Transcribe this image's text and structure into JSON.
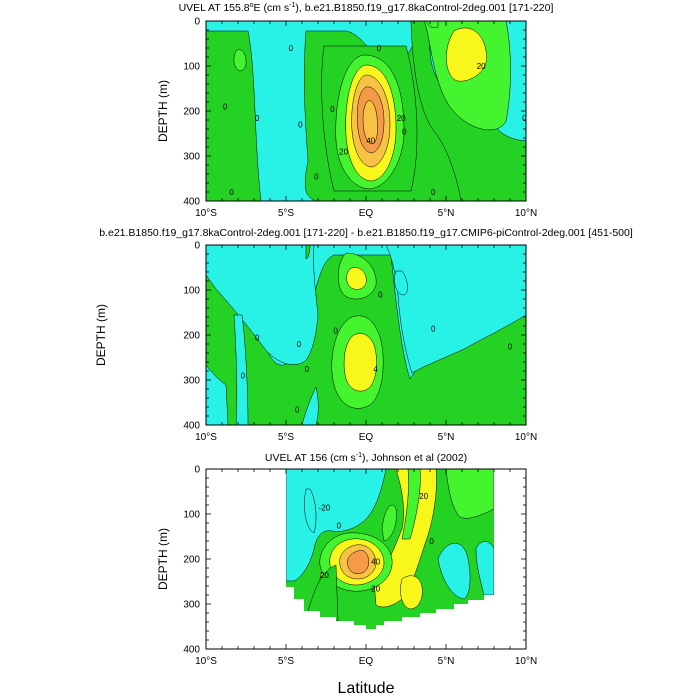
{
  "figure": {
    "xlabel": "Latitude",
    "colors": {
      "cyan": "#28f2e6",
      "green": "#24d224",
      "lime": "#44f42e",
      "yellow": "#f7f71c",
      "lightorange": "#f8c244",
      "orange": "#f59a46",
      "background": "#ffffff"
    }
  },
  "chart_data": [
    {
      "type": "contour",
      "title_parts": [
        "UVEL AT 155.8",
        "o",
        "E (cm s",
        "-1",
        "), b.e21.B1850.f19_g17.8kaControl-2deg.001 [171-220]"
      ],
      "xlabel": "",
      "ylabel": "DEPTH (m)",
      "xlim": [
        -10,
        10
      ],
      "ylim": [
        400,
        0
      ],
      "xticks": [
        -10,
        -5,
        0,
        5,
        10
      ],
      "xtick_labels": [
        "10°S",
        "5°S",
        "EQ",
        "5°N",
        "10°N"
      ],
      "yticks": [
        0,
        100,
        200,
        300,
        400
      ],
      "ytick_labels": [
        "0",
        "100",
        "200",
        "300",
        "400"
      ],
      "contour_labels": [
        {
          "text": "0",
          "x": -8.4,
          "y": 380
        },
        {
          "text": "0",
          "x": -8.8,
          "y": 190
        },
        {
          "text": "0",
          "x": -6.8,
          "y": 215
        },
        {
          "text": "0",
          "x": -4.7,
          "y": 60
        },
        {
          "text": "0",
          "x": -4.1,
          "y": 230
        },
        {
          "text": "0",
          "x": -3.1,
          "y": 345
        },
        {
          "text": "0",
          "x": -2.1,
          "y": 195
        },
        {
          "text": "0",
          "x": 0.8,
          "y": 60
        },
        {
          "text": "0",
          "x": 4.2,
          "y": 380
        },
        {
          "text": "0",
          "x": 9.9,
          "y": 215
        },
        {
          "text": "20",
          "x": 2.2,
          "y": 215
        },
        {
          "text": "20",
          "x": 7.2,
          "y": 100
        },
        {
          "text": "40",
          "x": 0.3,
          "y": 265
        },
        {
          "text": "20",
          "x": -1.4,
          "y": 290
        },
        {
          "text": "0",
          "x": 2.4,
          "y": 245
        }
      ]
    },
    {
      "type": "contour",
      "title_parts": [
        "b.e21.B1850.f19_g17.8kaControl-2deg.001 [171-220] - b.e21.B1850.f19_g17.CMIP6-piControl-2deg.001 [451-500]"
      ],
      "xlabel": "",
      "ylabel": "DEPTH (m)",
      "xlim": [
        -10,
        10
      ],
      "ylim": [
        400,
        0
      ],
      "xticks": [
        -10,
        -5,
        0,
        5,
        10
      ],
      "xtick_labels": [
        "10°S",
        "5°S",
        "EQ",
        "5°N",
        "10°N"
      ],
      "yticks": [
        0,
        100,
        200,
        300,
        400
      ],
      "ytick_labels": [
        "0",
        "100",
        "200",
        "300",
        "400"
      ],
      "contour_labels": [
        {
          "text": "0",
          "x": -4.2,
          "y": 220
        },
        {
          "text": "0",
          "x": -7.7,
          "y": 290
        },
        {
          "text": "0",
          "x": -6.8,
          "y": 205
        },
        {
          "text": "0",
          "x": -4.3,
          "y": 365
        },
        {
          "text": "0",
          "x": -3.7,
          "y": 275
        },
        {
          "text": "0",
          "x": -1.9,
          "y": 190
        },
        {
          "text": "0",
          "x": 0.9,
          "y": 110
        },
        {
          "text": "0",
          "x": 4.2,
          "y": 185
        },
        {
          "text": "0",
          "x": 9.0,
          "y": 225
        },
        {
          "text": "4",
          "x": 0.6,
          "y": 275
        }
      ]
    },
    {
      "type": "contour",
      "title_parts": [
        "UVEL AT 156 (cm s",
        "-1",
        "), Johnson et al (2002)"
      ],
      "xlabel": "Latitude",
      "ylabel": "DEPTH (m)",
      "xlim": [
        -10,
        10
      ],
      "ylim": [
        400,
        0
      ],
      "xticks": [
        -10,
        -5,
        0,
        5,
        10
      ],
      "xtick_labels": [
        "10°S",
        "5°S",
        "EQ",
        "5°N",
        "10°N"
      ],
      "yticks": [
        0,
        100,
        200,
        300,
        400
      ],
      "ytick_labels": [
        "0",
        "100",
        "200",
        "300",
        "400"
      ],
      "data_extent": {
        "lat_min": -5.0,
        "lat_max": 8.0,
        "max_depth": 355
      },
      "contour_labels": [
        {
          "text": "-20",
          "x": -2.6,
          "y": 85
        },
        {
          "text": "0",
          "x": -1.7,
          "y": 125
        },
        {
          "text": "20",
          "x": 3.6,
          "y": 60
        },
        {
          "text": "0",
          "x": 4.1,
          "y": 160
        },
        {
          "text": "20",
          "x": -2.6,
          "y": 235
        },
        {
          "text": "40",
          "x": 0.6,
          "y": 205
        },
        {
          "text": "20",
          "x": 0.6,
          "y": 265
        }
      ]
    }
  ]
}
